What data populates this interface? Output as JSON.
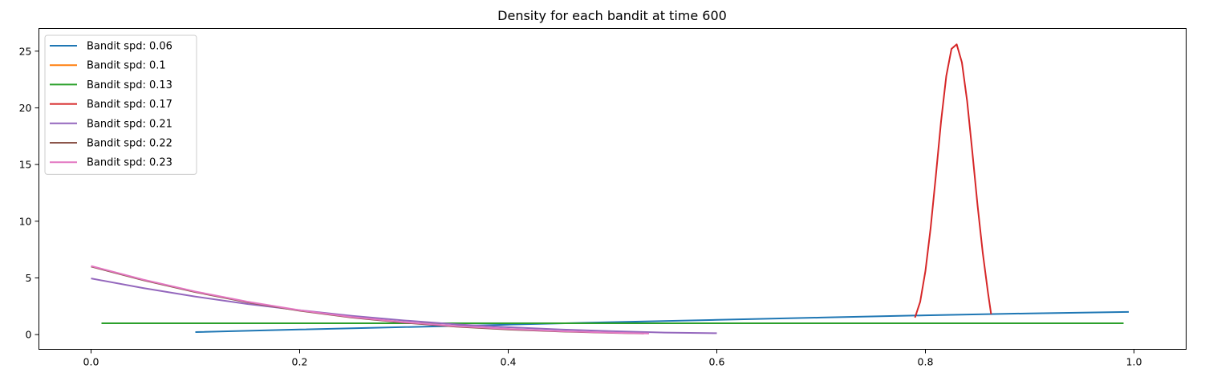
{
  "chart_data": {
    "type": "line",
    "title": "Density for each bandit at time 600",
    "xlabel": "",
    "ylabel": "",
    "xlim": [
      -0.05,
      1.05
    ],
    "ylim": [
      -1.3,
      27.0
    ],
    "xticks": [
      0.0,
      0.2,
      0.4,
      0.6,
      0.8,
      1.0
    ],
    "xtick_labels": [
      "0.0",
      "0.2",
      "0.4",
      "0.6",
      "0.8",
      "1.0"
    ],
    "yticks": [
      0,
      5,
      10,
      15,
      20,
      25
    ],
    "ytick_labels": [
      "0",
      "5",
      "10",
      "15",
      "20",
      "25"
    ],
    "grid": false,
    "legend_position": "top-left",
    "series": [
      {
        "name": "Bandit spd: 0.06",
        "color": "#1f77b4",
        "x": [
          0.1,
          0.2,
          0.3,
          0.4,
          0.5,
          0.6,
          0.7,
          0.8,
          0.9,
          0.995
        ],
        "y": [
          0.22,
          0.45,
          0.66,
          0.88,
          1.1,
          1.3,
          1.5,
          1.7,
          1.87,
          2.0
        ]
      },
      {
        "name": "Bandit spd: 0.1",
        "color": "#ff7f0e",
        "x": [
          0.01,
          0.99
        ],
        "y": [
          1.0,
          1.0
        ]
      },
      {
        "name": "Bandit spd: 0.13",
        "color": "#2ca02c",
        "x": [
          0.01,
          0.99
        ],
        "y": [
          1.0,
          1.0
        ]
      },
      {
        "name": "Bandit spd: 0.17",
        "color": "#d62728",
        "x": [
          0.79,
          0.795,
          0.8,
          0.805,
          0.81,
          0.815,
          0.82,
          0.825,
          0.83,
          0.835,
          0.84,
          0.845,
          0.85,
          0.855,
          0.86,
          0.863
        ],
        "y": [
          1.5,
          2.9,
          5.6,
          9.4,
          14.0,
          18.8,
          22.8,
          25.2,
          25.6,
          24.0,
          20.6,
          16.1,
          11.4,
          7.2,
          3.7,
          1.8
        ]
      },
      {
        "name": "Bandit spd: 0.21",
        "color": "#9467bd",
        "x": [
          0.0,
          0.05,
          0.1,
          0.15,
          0.2,
          0.25,
          0.3,
          0.35,
          0.4,
          0.45,
          0.5,
          0.55,
          0.6
        ],
        "y": [
          4.95,
          4.1,
          3.35,
          2.7,
          2.15,
          1.65,
          1.25,
          0.9,
          0.65,
          0.45,
          0.3,
          0.18,
          0.12
        ]
      },
      {
        "name": "Bandit spd: 0.22",
        "color": "#8c564b",
        "x": [
          0.0,
          0.05,
          0.1,
          0.15,
          0.2,
          0.25,
          0.3,
          0.35,
          0.4,
          0.45,
          0.5,
          0.53
        ],
        "y": [
          6.0,
          4.8,
          3.75,
          2.85,
          2.1,
          1.5,
          1.05,
          0.7,
          0.45,
          0.27,
          0.15,
          0.1
        ]
      },
      {
        "name": "Bandit spd: 0.23",
        "color": "#e377c2",
        "x": [
          0.0,
          0.05,
          0.1,
          0.15,
          0.2,
          0.25,
          0.3,
          0.35,
          0.4,
          0.45,
          0.5,
          0.535
        ],
        "y": [
          6.05,
          4.85,
          3.8,
          2.9,
          2.15,
          1.55,
          1.1,
          0.75,
          0.5,
          0.3,
          0.17,
          0.1
        ]
      }
    ]
  }
}
